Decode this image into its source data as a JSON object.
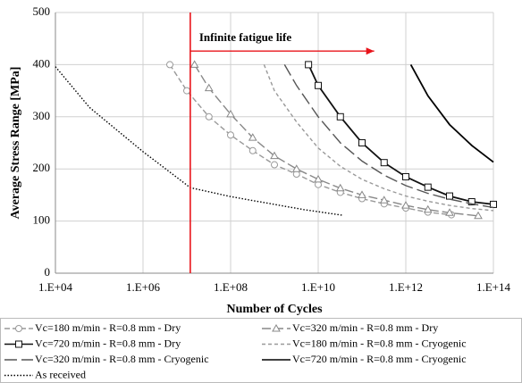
{
  "chart_data": {
    "type": "line",
    "x_label": "Number of Cycles",
    "y_label": "Average Stress Range [MPa]",
    "xlog": true,
    "xlim": [
      10000,
      100000000000000.0
    ],
    "ylim": [
      0,
      500
    ],
    "xticks": [
      {
        "value": 10000,
        "label": "1.E+04"
      },
      {
        "value": 1000000,
        "label": "1.E+06"
      },
      {
        "value": 100000000,
        "label": "1.E+08"
      },
      {
        "value": 10000000000,
        "label": "1.E+10"
      },
      {
        "value": 1000000000000,
        "label": "1.E+12"
      },
      {
        "value": 100000000000000.0,
        "label": "1.E+14"
      }
    ],
    "yticks": [
      0,
      100,
      200,
      300,
      400,
      500
    ],
    "grid": true,
    "legend": "bottom",
    "vline": {
      "x": 12000000,
      "color": "#e8141b"
    },
    "annotation": {
      "text": "Infinite fatigue life",
      "x": 12000000,
      "x_end": 190000000000,
      "y": 426,
      "color": "#e8141b"
    },
    "series": [
      {
        "name": "Vc=180 m/min - R=0.8 mm - Dry",
        "color": "#999999",
        "marker": "circle",
        "dash": "6 3",
        "x": [
          4100000,
          10000000,
          32000000,
          100000000,
          320000000,
          1000000000,
          3200000000,
          10000000000,
          32000000000,
          100000000000,
          320000000000,
          1000000000000,
          3200000000000,
          11000000000000
        ],
        "values": [
          400,
          350,
          300,
          265,
          235,
          208,
          190,
          170,
          155,
          143,
          133,
          125,
          117,
          112
        ]
      },
      {
        "name": "Vc=320 m/min - R=0.8 mm - Dry",
        "color": "#888888",
        "marker": "triangle",
        "dash": "10 4",
        "x": [
          15000000,
          32000000,
          100000000,
          320000000,
          1000000000,
          3200000000,
          10000000000,
          32000000000,
          100000000000,
          320000000000,
          1000000000000,
          3200000000000,
          10000000000000,
          45000000000000
        ],
        "values": [
          400,
          355,
          305,
          260,
          225,
          200,
          180,
          163,
          150,
          140,
          130,
          122,
          116,
          110
        ]
      },
      {
        "name": "Vc=720 m/min - R=0.8 mm - Dry",
        "color": "#111111",
        "marker": "square",
        "dash": "",
        "x": [
          6000000000,
          10000000000,
          32000000000,
          100000000000,
          320000000000,
          1000000000000,
          3200000000000,
          10000000000000,
          32000000000000,
          100000000000000.0
        ],
        "values": [
          400,
          360,
          300,
          250,
          212,
          185,
          165,
          148,
          137,
          132
        ]
      },
      {
        "name": "Vc=180 m/min - R=0.8 mm - Cryogenic",
        "color": "#999999",
        "marker": "none",
        "dash": "4 3",
        "x": [
          580000000,
          1000000000,
          3200000000,
          10000000000,
          32000000000,
          100000000000,
          320000000000,
          1000000000000,
          3200000000000,
          10000000000000,
          32000000000000,
          100000000000000.0
        ],
        "values": [
          400,
          350,
          290,
          240,
          205,
          180,
          162,
          148,
          138,
          130,
          124,
          120
        ]
      },
      {
        "name": "Vc=320 m/min - R=0.8 mm - Cryogenic",
        "color": "#555555",
        "marker": "none",
        "dash": "14 5",
        "x": [
          1700000000,
          3200000000,
          10000000000,
          32000000000,
          100000000000,
          320000000000,
          1000000000000,
          3200000000000,
          10000000000000,
          32000000000000,
          100000000000000.0
        ],
        "values": [
          400,
          360,
          300,
          250,
          215,
          188,
          168,
          153,
          142,
          133,
          126
        ]
      },
      {
        "name": "Vc=720 m/min - R=0.8 mm - Cryogenic",
        "color": "#000000",
        "marker": "none",
        "dash": "",
        "x": [
          1300000000000,
          3200000000000,
          10000000000000,
          32000000000000,
          100000000000000.0
        ],
        "values": [
          400,
          340,
          285,
          245,
          213
        ]
      },
      {
        "name": "As received",
        "color": "#000000",
        "marker": "none",
        "dash": "1.5 2",
        "x": [
          10000,
          60000,
          1000000,
          12000000,
          100000000,
          720000000,
          4700000000,
          37000000000
        ],
        "values": [
          396,
          318,
          233,
          164,
          147,
          134,
          122,
          111
        ]
      }
    ]
  }
}
